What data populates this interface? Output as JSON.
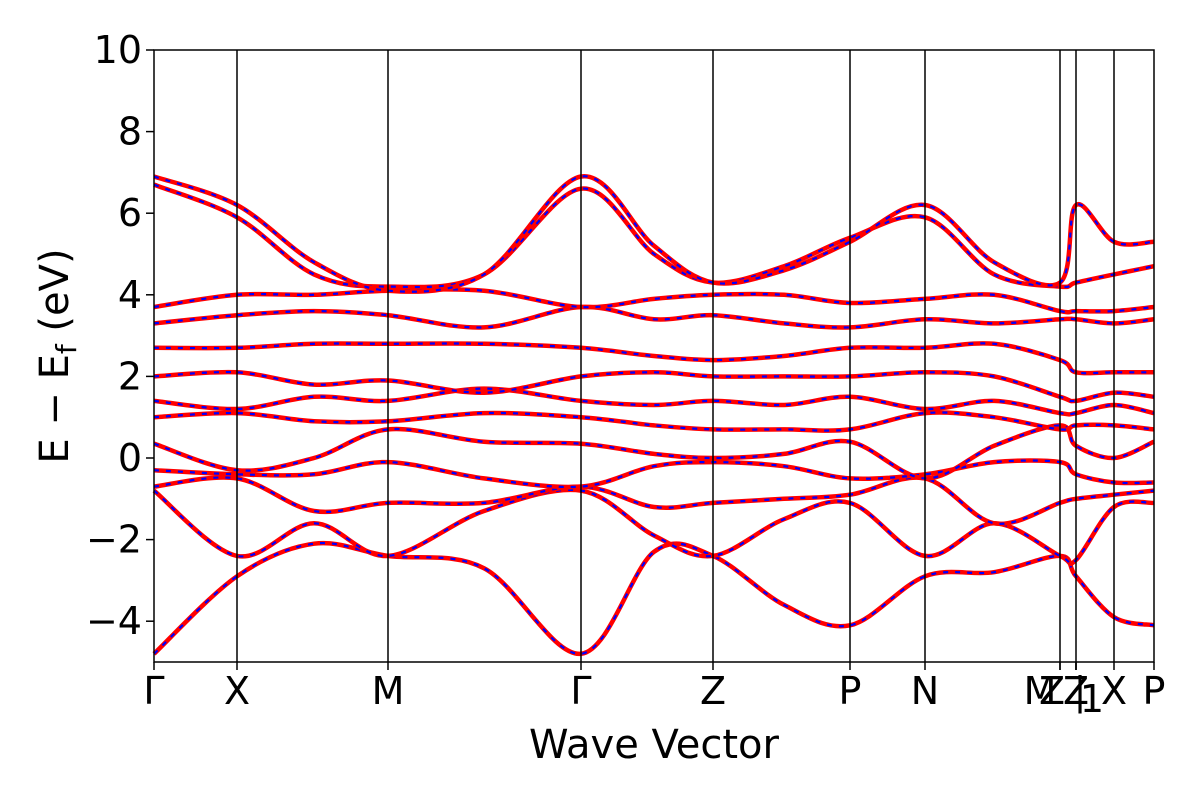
{
  "chart_data": {
    "type": "line",
    "xlabel": "Wave Vector",
    "ylabel": "E − E",
    "ylabel_sub": "f",
    "ylabel_unit": " (eV)",
    "ylim": [
      -5,
      10
    ],
    "yticks": [
      -4,
      -2,
      0,
      2,
      4,
      6,
      8,
      10
    ],
    "ytick_labels": [
      "−4",
      "−2",
      "0",
      "2",
      "4",
      "6",
      "8",
      "10"
    ],
    "grid": false,
    "legend": "none",
    "high_symmetry_points": [
      {
        "label": "Γ",
        "x": 0.0
      },
      {
        "label": "X",
        "x": 0.083
      },
      {
        "label": "M",
        "x": 0.234
      },
      {
        "label": "Γ",
        "x": 0.427
      },
      {
        "label": "Z",
        "x": 0.559
      },
      {
        "label": "P",
        "x": 0.696
      },
      {
        "label": "N",
        "x": 0.771
      },
      {
        "label": "Z",
        "x": 0.906
      },
      {
        "label": "M",
        "x": 0.906
      },
      {
        "label": "Z",
        "x": 0.922
      },
      {
        "label": "1",
        "x": 0.922
      },
      {
        "label": "|",
        "x": 0.922
      },
      {
        "label": "X",
        "x": 0.96
      },
      {
        "label": "P",
        "x": 1.0
      }
    ],
    "xlim": [
      0,
      1
    ],
    "series_styles": [
      {
        "color": "#ff0000",
        "style": "solid"
      },
      {
        "color": "#0000ff",
        "style": "dashed"
      }
    ],
    "bands": [
      {
        "x": [
          0,
          0.083,
          0.16,
          0.234,
          0.33,
          0.427,
          0.5,
          0.559,
          0.63,
          0.696,
          0.771,
          0.84,
          0.906,
          0.922,
          0.96,
          1.0
        ],
        "y": [
          -4.8,
          -2.9,
          -2.1,
          -2.4,
          -2.7,
          -4.8,
          -2.3,
          -2.4,
          -3.6,
          -4.1,
          -2.9,
          -2.8,
          -2.4,
          -2.9,
          -3.9,
          -4.1
        ]
      },
      {
        "x": [
          0,
          0.083,
          0.16,
          0.234,
          0.33,
          0.427,
          0.5,
          0.559,
          0.63,
          0.696,
          0.771,
          0.84,
          0.906,
          0.922,
          0.96,
          1.0
        ],
        "y": [
          -0.8,
          -2.4,
          -1.6,
          -2.4,
          -1.3,
          -0.8,
          -1.9,
          -2.4,
          -1.5,
          -1.1,
          -2.4,
          -1.6,
          -2.4,
          -2.5,
          -1.2,
          -1.1
        ]
      },
      {
        "x": [
          0,
          0.083,
          0.16,
          0.234,
          0.33,
          0.427,
          0.5,
          0.559,
          0.63,
          0.696,
          0.771,
          0.84,
          0.906,
          0.922,
          0.96,
          1.0
        ],
        "y": [
          -0.7,
          -0.5,
          -1.3,
          -1.1,
          -1.1,
          -0.7,
          -1.2,
          -1.1,
          -1.0,
          -0.9,
          -0.5,
          -1.6,
          -1.1,
          -1.0,
          -0.9,
          -0.8
        ]
      },
      {
        "x": [
          0,
          0.083,
          0.16,
          0.234,
          0.33,
          0.427,
          0.5,
          0.559,
          0.63,
          0.696,
          0.771,
          0.84,
          0.906,
          0.922,
          0.96,
          1.0
        ],
        "y": [
          -0.3,
          -0.4,
          -0.4,
          -0.1,
          -0.5,
          -0.7,
          -0.2,
          -0.1,
          -0.2,
          -0.5,
          -0.4,
          -0.1,
          -0.1,
          -0.4,
          -0.6,
          -0.6
        ]
      },
      {
        "x": [
          0,
          0.083,
          0.16,
          0.234,
          0.33,
          0.427,
          0.5,
          0.559,
          0.63,
          0.696,
          0.771,
          0.84,
          0.906,
          0.922,
          0.96,
          1.0
        ],
        "y": [
          0.35,
          -0.3,
          0.0,
          0.7,
          0.4,
          0.35,
          0.1,
          0.0,
          0.1,
          0.4,
          -0.5,
          0.3,
          0.8,
          0.3,
          0.0,
          0.4
        ]
      },
      {
        "x": [
          0,
          0.083,
          0.16,
          0.234,
          0.33,
          0.427,
          0.5,
          0.559,
          0.63,
          0.696,
          0.771,
          0.84,
          0.906,
          0.922,
          0.96,
          1.0
        ],
        "y": [
          1.0,
          1.1,
          0.9,
          0.9,
          1.1,
          1.0,
          0.8,
          0.7,
          0.7,
          0.7,
          1.1,
          1.0,
          0.7,
          0.8,
          0.8,
          0.7
        ]
      },
      {
        "x": [
          0,
          0.083,
          0.16,
          0.234,
          0.33,
          0.427,
          0.5,
          0.559,
          0.63,
          0.696,
          0.771,
          0.84,
          0.906,
          0.922,
          0.96,
          1.0
        ],
        "y": [
          1.4,
          1.2,
          1.5,
          1.4,
          1.7,
          1.4,
          1.3,
          1.4,
          1.3,
          1.5,
          1.2,
          1.4,
          1.1,
          1.1,
          1.3,
          1.1
        ]
      },
      {
        "x": [
          0,
          0.083,
          0.16,
          0.234,
          0.33,
          0.427,
          0.5,
          0.559,
          0.63,
          0.696,
          0.771,
          0.84,
          0.906,
          0.922,
          0.96,
          1.0
        ],
        "y": [
          2.0,
          2.1,
          1.8,
          1.9,
          1.6,
          2.0,
          2.1,
          2.0,
          2.0,
          2.0,
          2.1,
          2.0,
          1.5,
          1.4,
          1.6,
          1.5
        ]
      },
      {
        "x": [
          0,
          0.083,
          0.16,
          0.234,
          0.33,
          0.427,
          0.5,
          0.559,
          0.63,
          0.696,
          0.771,
          0.84,
          0.906,
          0.922,
          0.96,
          1.0
        ],
        "y": [
          2.7,
          2.7,
          2.8,
          2.8,
          2.8,
          2.7,
          2.5,
          2.4,
          2.5,
          2.7,
          2.7,
          2.8,
          2.4,
          2.1,
          2.1,
          2.1
        ]
      },
      {
        "x": [
          0,
          0.083,
          0.16,
          0.234,
          0.33,
          0.427,
          0.5,
          0.559,
          0.63,
          0.696,
          0.771,
          0.84,
          0.906,
          0.922,
          0.96,
          1.0
        ],
        "y": [
          3.3,
          3.5,
          3.6,
          3.5,
          3.2,
          3.7,
          3.4,
          3.5,
          3.3,
          3.2,
          3.4,
          3.3,
          3.4,
          3.4,
          3.3,
          3.4
        ]
      },
      {
        "x": [
          0,
          0.083,
          0.16,
          0.234,
          0.33,
          0.427,
          0.5,
          0.559,
          0.63,
          0.696,
          0.771,
          0.84,
          0.906,
          0.922,
          0.96,
          1.0
        ],
        "y": [
          3.7,
          4.0,
          4.0,
          4.1,
          4.1,
          3.7,
          3.9,
          4.0,
          4.0,
          3.8,
          3.9,
          4.0,
          3.6,
          3.6,
          3.6,
          3.7
        ]
      },
      {
        "x": [
          0,
          0.083,
          0.16,
          0.234,
          0.33,
          0.427,
          0.5,
          0.559,
          0.63,
          0.696,
          0.771,
          0.84,
          0.906,
          0.922,
          0.96,
          1.0
        ],
        "y": [
          6.7,
          5.9,
          4.5,
          4.2,
          4.5,
          6.6,
          5.0,
          4.3,
          4.7,
          5.4,
          5.9,
          4.5,
          4.2,
          4.3,
          4.5,
          4.7
        ]
      },
      {
        "x": [
          0,
          0.083,
          0.16,
          0.234,
          0.33,
          0.427,
          0.5,
          0.559,
          0.63,
          0.696,
          0.771,
          0.84,
          0.906,
          0.922,
          0.96,
          1.0
        ],
        "y": [
          6.9,
          6.2,
          4.8,
          4.1,
          4.5,
          6.9,
          5.2,
          4.3,
          4.6,
          5.3,
          6.2,
          4.8,
          4.3,
          6.2,
          5.3,
          5.3
        ]
      }
    ]
  }
}
